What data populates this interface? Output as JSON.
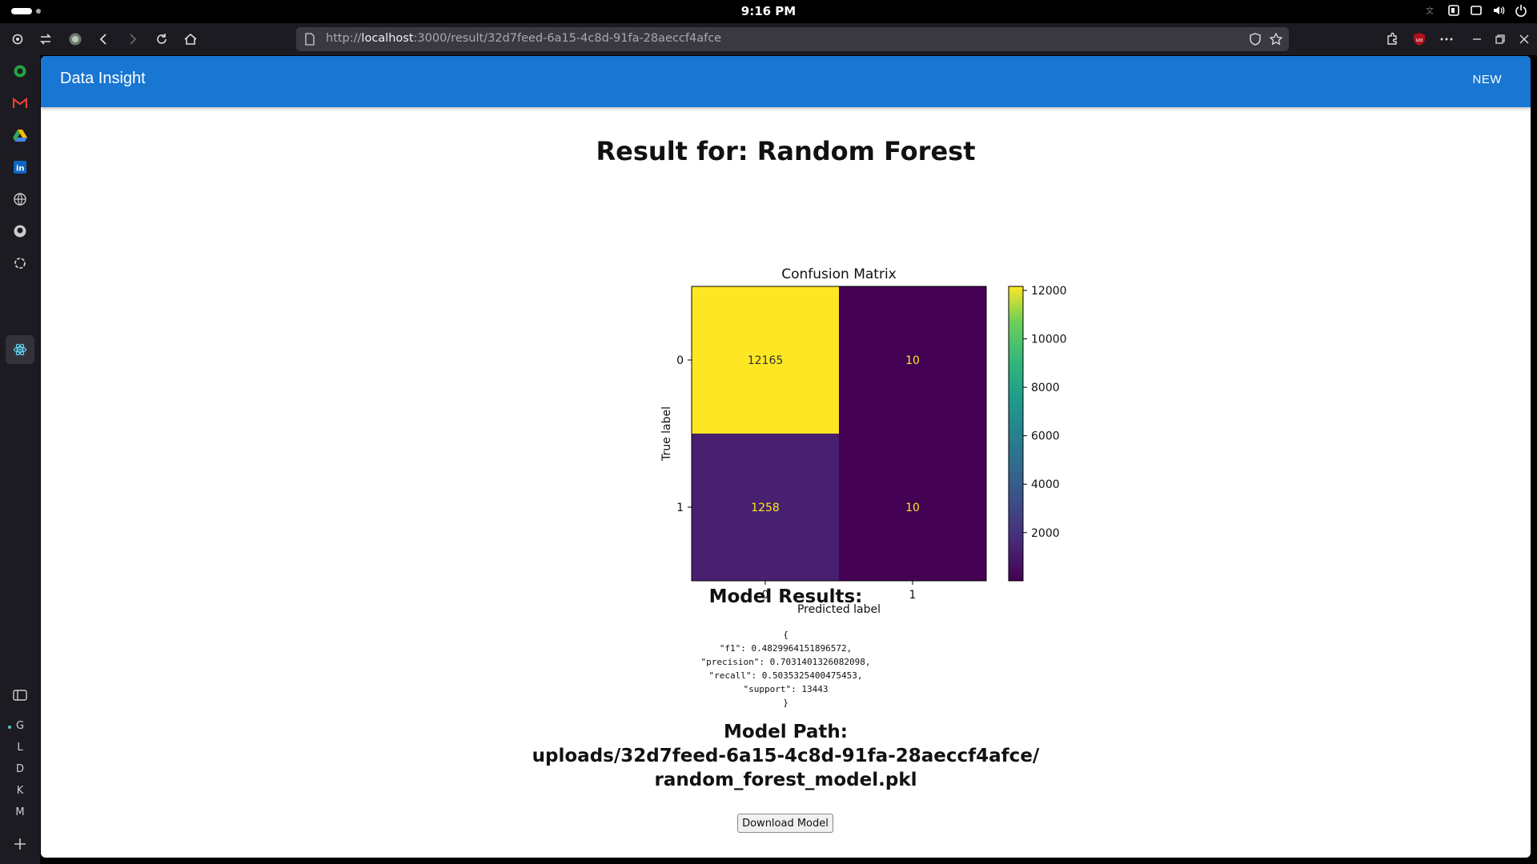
{
  "os": {
    "time": "9:16 PM"
  },
  "browser": {
    "url_prefix": "http://",
    "url_host": "localhost",
    "url_rest": ":3000/result/32d7feed-6a15-4c8d-91fa-28aeccf4afce",
    "extension_badge": "uo"
  },
  "sidebar": {
    "letters": [
      "G",
      "L",
      "D",
      "K",
      "M"
    ]
  },
  "app": {
    "title": "Data Insight",
    "new_label": "NEW"
  },
  "result": {
    "heading": "Result for: Random Forest",
    "model_results_heading": "Model Results:",
    "json_lines": [
      "{",
      "\"f1\": 0.4829964151896572,",
      "\"precision\": 0.7031401326082098,",
      "\"recall\": 0.5035325400475453,",
      "\"support\": 13443",
      "}"
    ],
    "model_path_heading": "Model Path:",
    "model_path_line1": "uploads/32d7feed-6a15-4c8d-91fa-28aeccf4afce/",
    "model_path_line2": "random_forest_model.pkl",
    "download_label": "Download Model"
  },
  "chart_data": {
    "type": "heatmap",
    "title": "Confusion Matrix",
    "xlabel": "Predicted label",
    "ylabel": "True label",
    "x_categories": [
      "0",
      "1"
    ],
    "y_categories": [
      "0",
      "1"
    ],
    "values": [
      [
        12165,
        10
      ],
      [
        1258,
        10
      ]
    ],
    "colormap": "viridis",
    "colorbar_ticks": [
      2000,
      4000,
      6000,
      8000,
      10000,
      12000
    ],
    "colorbar_range": [
      10,
      12165
    ]
  }
}
